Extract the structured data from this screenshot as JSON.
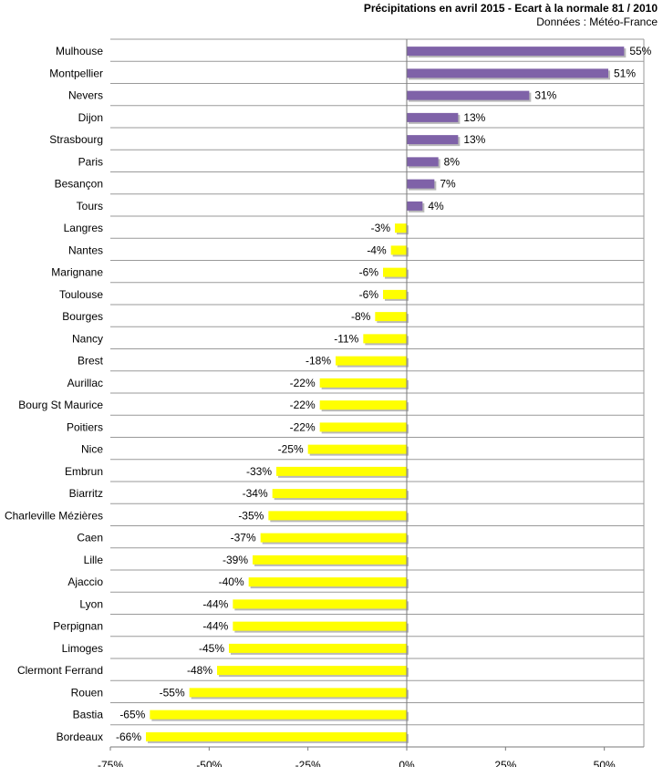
{
  "chart_data": {
    "type": "bar",
    "orientation": "horizontal",
    "title": "Précipitations en avril 2015 - Ecart à la normale 81 / 2010",
    "subtitle": "Données : Météo-France",
    "xlabel": "",
    "ylabel": "",
    "xlim": [
      -75,
      60
    ],
    "xticks": [
      -75,
      -50,
      -25,
      0,
      25,
      50
    ],
    "xtick_labels": [
      "-75%",
      "-50%",
      "-25%",
      "0%",
      "25%",
      "50%"
    ],
    "grid": "horizontal",
    "legend": "none",
    "categories": [
      "Mulhouse",
      "Montpellier",
      "Nevers",
      "Dijon",
      "Strasbourg",
      "Paris",
      "Besançon",
      "Tours",
      "Langres",
      "Nantes",
      "Marignane",
      "Toulouse",
      "Bourges",
      "Nancy",
      "Brest",
      "Aurillac",
      "Bourg St Maurice",
      "Poitiers",
      "Nice",
      "Embrun",
      "Biarritz",
      "Charleville Mézières",
      "Caen",
      "Lille",
      "Ajaccio",
      "Lyon",
      "Perpignan",
      "Limoges",
      "Clermont Ferrand",
      "Rouen",
      "Bastia",
      "Bordeaux"
    ],
    "values": [
      55,
      51,
      31,
      13,
      13,
      8,
      7,
      4,
      -3,
      -4,
      -6,
      -6,
      -8,
      -11,
      -18,
      -22,
      -22,
      -22,
      -25,
      -33,
      -34,
      -35,
      -37,
      -39,
      -40,
      -44,
      -44,
      -45,
      -48,
      -55,
      -65,
      -66
    ],
    "value_labels": [
      "55%",
      "51%",
      "31%",
      "13%",
      "13%",
      "8%",
      "7%",
      "4%",
      "-3%",
      "-4%",
      "-6%",
      "-6%",
      "-8%",
      "-11%",
      "-18%",
      "-22%",
      "-22%",
      "-22%",
      "-25%",
      "-33%",
      "-34%",
      "-35%",
      "-37%",
      "-39%",
      "-40%",
      "-44%",
      "-44%",
      "-45%",
      "-48%",
      "-55%",
      "-65%",
      "-66%"
    ],
    "colors": {
      "positive": "#7f62a8",
      "negative": "#ffff00",
      "shadow": "#b9b9b9",
      "grid": "#9a9a9a",
      "axis": "#7a7a7a"
    }
  }
}
